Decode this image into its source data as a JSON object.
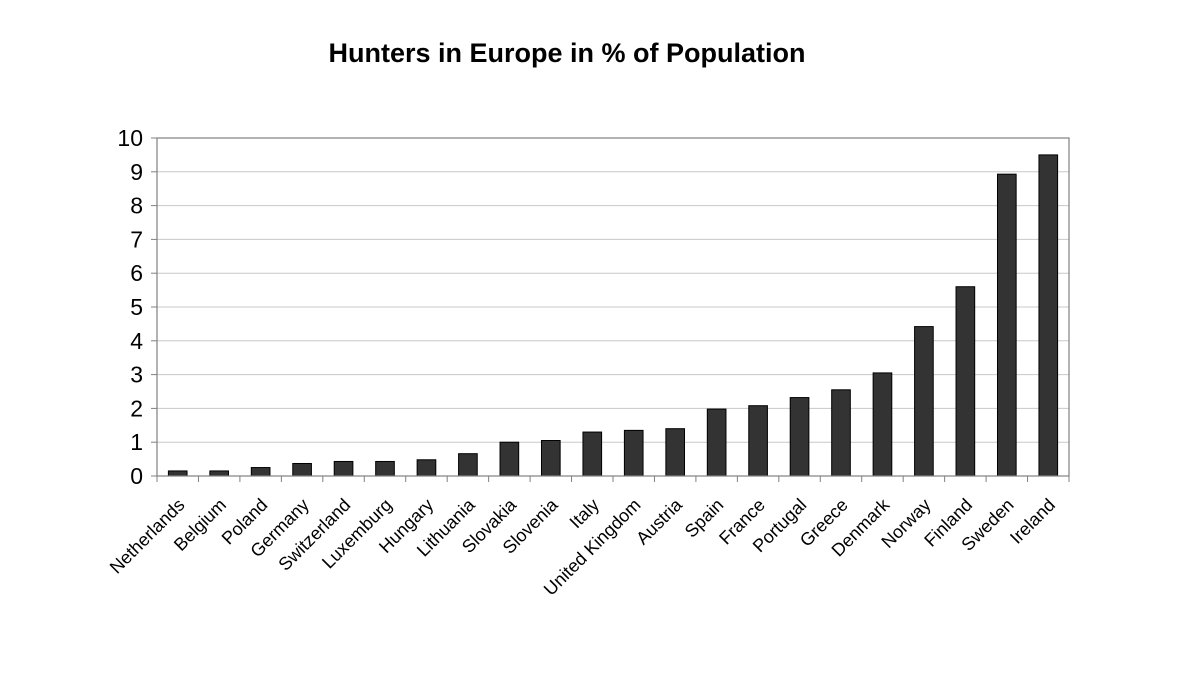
{
  "chart_data": {
    "type": "bar",
    "title": "Hunters in Europe in % of Population",
    "xlabel": "",
    "ylabel": "",
    "ylim": [
      0,
      10
    ],
    "yticks": [
      0,
      1,
      2,
      3,
      4,
      5,
      6,
      7,
      8,
      9,
      10
    ],
    "grid": true,
    "legend": "none",
    "bar_color": "#333333",
    "categories": [
      "Netherlands",
      "Belgium",
      "Poland",
      "Germany",
      "Switzerland",
      "Luxemburg",
      "Hungary",
      "Lithuania",
      "Slovakia",
      "Slovenia",
      "Italy",
      "United Kingdom",
      "Austria",
      "Spain",
      "France",
      "Portugal",
      "Greece",
      "Denmark",
      "Norway",
      "Finland",
      "Sweden",
      "Ireland"
    ],
    "values": [
      0.15,
      0.15,
      0.25,
      0.37,
      0.43,
      0.43,
      0.48,
      0.66,
      1.0,
      1.05,
      1.3,
      1.35,
      1.4,
      1.98,
      2.08,
      2.32,
      2.55,
      3.05,
      4.42,
      5.6,
      8.93,
      9.5
    ]
  }
}
